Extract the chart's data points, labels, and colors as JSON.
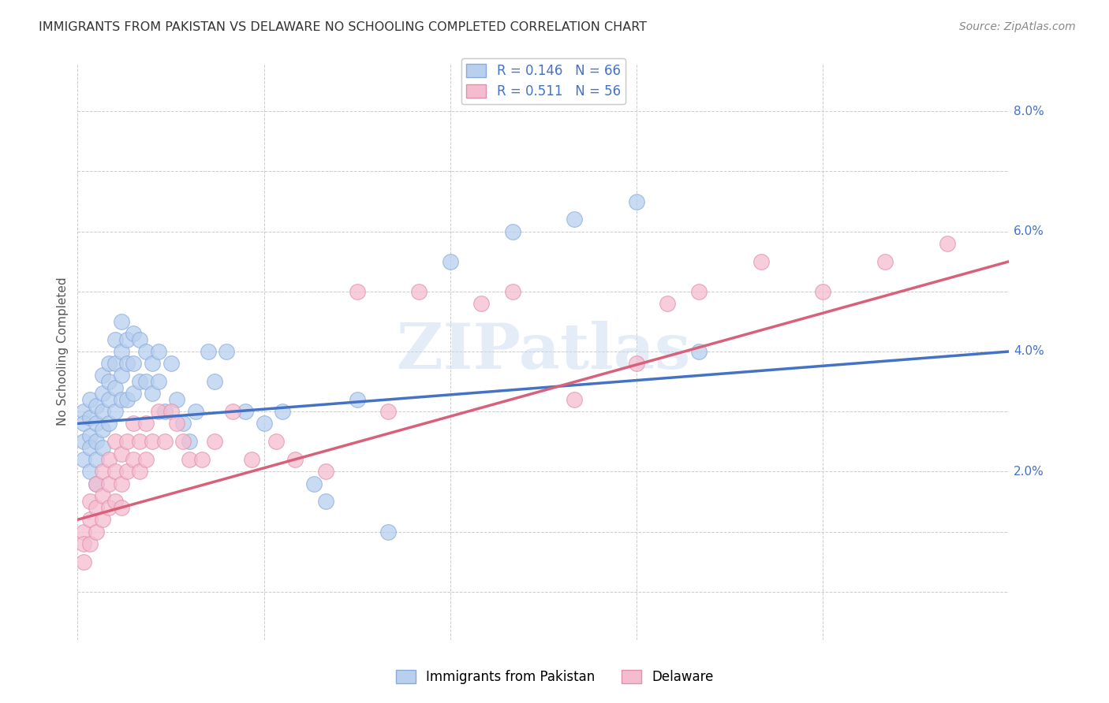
{
  "title": "IMMIGRANTS FROM PAKISTAN VS DELAWARE NO SCHOOLING COMPLETED CORRELATION CHART",
  "source": "Source: ZipAtlas.com",
  "ylabel": "No Schooling Completed",
  "xmin": 0.0,
  "xmax": 0.15,
  "ymin": -0.008,
  "ymax": 0.088,
  "legend1_label": "R = 0.146   N = 66",
  "legend2_label": "R = 0.511   N = 56",
  "scatter1_color": "#b8d0ee",
  "scatter2_color": "#f5bcd0",
  "scatter1_edge": "#88aadd",
  "scatter2_edge": "#e090aa",
  "line1_color": "#4472c4",
  "line2_color": "#d9607a",
  "background_color": "#ffffff",
  "grid_color": "#cccccc",
  "watermark": "ZIPatlas",
  "ytick_labels": [
    "2.0%",
    "4.0%",
    "6.0%",
    "8.0%"
  ],
  "ytick_vals": [
    0.02,
    0.04,
    0.06,
    0.08
  ],
  "line1_x0": 0.0,
  "line1_y0": 0.028,
  "line1_x1": 0.15,
  "line1_y1": 0.04,
  "line2_x0": 0.0,
  "line2_y0": 0.012,
  "line2_x1": 0.15,
  "line2_y1": 0.055,
  "pakistan_x": [
    0.001,
    0.001,
    0.001,
    0.001,
    0.002,
    0.002,
    0.002,
    0.002,
    0.002,
    0.003,
    0.003,
    0.003,
    0.003,
    0.003,
    0.004,
    0.004,
    0.004,
    0.004,
    0.004,
    0.005,
    0.005,
    0.005,
    0.005,
    0.006,
    0.006,
    0.006,
    0.006,
    0.007,
    0.007,
    0.007,
    0.007,
    0.008,
    0.008,
    0.008,
    0.009,
    0.009,
    0.009,
    0.01,
    0.01,
    0.011,
    0.011,
    0.012,
    0.012,
    0.013,
    0.013,
    0.014,
    0.015,
    0.016,
    0.017,
    0.018,
    0.019,
    0.021,
    0.022,
    0.024,
    0.027,
    0.03,
    0.033,
    0.038,
    0.04,
    0.045,
    0.05,
    0.06,
    0.07,
    0.08,
    0.09,
    0.1
  ],
  "pakistan_y": [
    0.03,
    0.028,
    0.025,
    0.022,
    0.032,
    0.029,
    0.026,
    0.024,
    0.02,
    0.031,
    0.028,
    0.025,
    0.022,
    0.018,
    0.036,
    0.033,
    0.03,
    0.027,
    0.024,
    0.038,
    0.035,
    0.032,
    0.028,
    0.042,
    0.038,
    0.034,
    0.03,
    0.045,
    0.04,
    0.036,
    0.032,
    0.042,
    0.038,
    0.032,
    0.043,
    0.038,
    0.033,
    0.042,
    0.035,
    0.04,
    0.035,
    0.038,
    0.033,
    0.04,
    0.035,
    0.03,
    0.038,
    0.032,
    0.028,
    0.025,
    0.03,
    0.04,
    0.035,
    0.04,
    0.03,
    0.028,
    0.03,
    0.018,
    0.015,
    0.032,
    0.01,
    0.055,
    0.06,
    0.062,
    0.065,
    0.04
  ],
  "delaware_x": [
    0.001,
    0.001,
    0.001,
    0.002,
    0.002,
    0.002,
    0.003,
    0.003,
    0.003,
    0.004,
    0.004,
    0.004,
    0.005,
    0.005,
    0.005,
    0.006,
    0.006,
    0.006,
    0.007,
    0.007,
    0.007,
    0.008,
    0.008,
    0.009,
    0.009,
    0.01,
    0.01,
    0.011,
    0.011,
    0.012,
    0.013,
    0.014,
    0.015,
    0.016,
    0.017,
    0.018,
    0.02,
    0.022,
    0.025,
    0.028,
    0.032,
    0.035,
    0.04,
    0.045,
    0.05,
    0.055,
    0.065,
    0.07,
    0.08,
    0.09,
    0.095,
    0.1,
    0.11,
    0.12,
    0.13,
    0.14
  ],
  "delaware_y": [
    0.01,
    0.008,
    0.005,
    0.015,
    0.012,
    0.008,
    0.018,
    0.014,
    0.01,
    0.02,
    0.016,
    0.012,
    0.022,
    0.018,
    0.014,
    0.025,
    0.02,
    0.015,
    0.023,
    0.018,
    0.014,
    0.025,
    0.02,
    0.028,
    0.022,
    0.025,
    0.02,
    0.028,
    0.022,
    0.025,
    0.03,
    0.025,
    0.03,
    0.028,
    0.025,
    0.022,
    0.022,
    0.025,
    0.03,
    0.022,
    0.025,
    0.022,
    0.02,
    0.05,
    0.03,
    0.05,
    0.048,
    0.05,
    0.032,
    0.038,
    0.048,
    0.05,
    0.055,
    0.05,
    0.055,
    0.058
  ]
}
